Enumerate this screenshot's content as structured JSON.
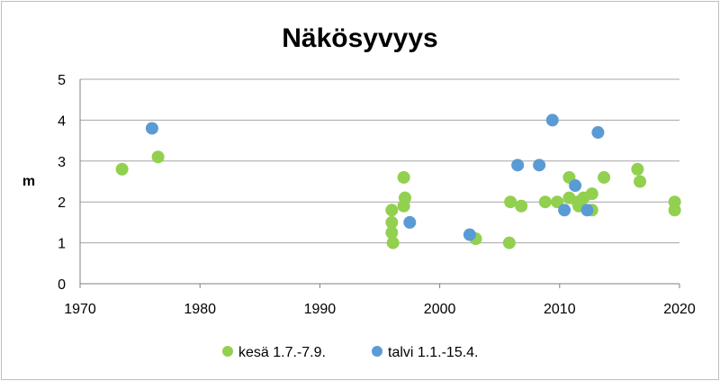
{
  "chart_data": {
    "type": "scatter",
    "title": "Näkösyvyys",
    "xlabel": "",
    "ylabel": "m",
    "xlim": [
      1970,
      2020
    ],
    "ylim": [
      0,
      5
    ],
    "x_ticks": [
      "1970",
      "1980",
      "1990",
      "2000",
      "2010",
      "2020"
    ],
    "y_ticks": [
      "0",
      "1",
      "2",
      "3",
      "4",
      "5"
    ],
    "grid": "horizontal",
    "legend_position": "bottom",
    "series": [
      {
        "name": "kesä 1.7.-7.9.",
        "color": "#92d050",
        "points": [
          [
            1973.5,
            2.8
          ],
          [
            1976.5,
            3.1
          ],
          [
            1996.0,
            1.8
          ],
          [
            1996.0,
            1.5
          ],
          [
            1996.0,
            1.25
          ],
          [
            1996.1,
            1.0
          ],
          [
            1997.0,
            2.6
          ],
          [
            1997.1,
            2.1
          ],
          [
            1997.0,
            1.9
          ],
          [
            2003.0,
            1.1
          ],
          [
            2005.8,
            1.0
          ],
          [
            2005.9,
            2.0
          ],
          [
            2006.8,
            1.9
          ],
          [
            2008.8,
            2.0
          ],
          [
            2009.8,
            2.0
          ],
          [
            2010.8,
            2.6
          ],
          [
            2010.8,
            2.1
          ],
          [
            2011.5,
            2.0
          ],
          [
            2011.6,
            1.9
          ],
          [
            2012.0,
            2.1
          ],
          [
            2012.7,
            2.2
          ],
          [
            2012.7,
            1.8
          ],
          [
            2013.7,
            2.6
          ],
          [
            2016.5,
            2.8
          ],
          [
            2016.7,
            2.5
          ],
          [
            2019.6,
            2.0
          ],
          [
            2019.6,
            1.8
          ]
        ]
      },
      {
        "name": "talvi 1.1.-15.4.",
        "color": "#5b9bd5",
        "points": [
          [
            1976.0,
            3.8
          ],
          [
            1997.5,
            1.5
          ],
          [
            2002.5,
            1.2
          ],
          [
            2006.5,
            2.9
          ],
          [
            2008.3,
            2.9
          ],
          [
            2009.4,
            4.0
          ],
          [
            2010.4,
            1.8
          ],
          [
            2011.3,
            2.4
          ],
          [
            2012.3,
            1.8
          ],
          [
            2013.2,
            3.7
          ]
        ]
      }
    ]
  }
}
